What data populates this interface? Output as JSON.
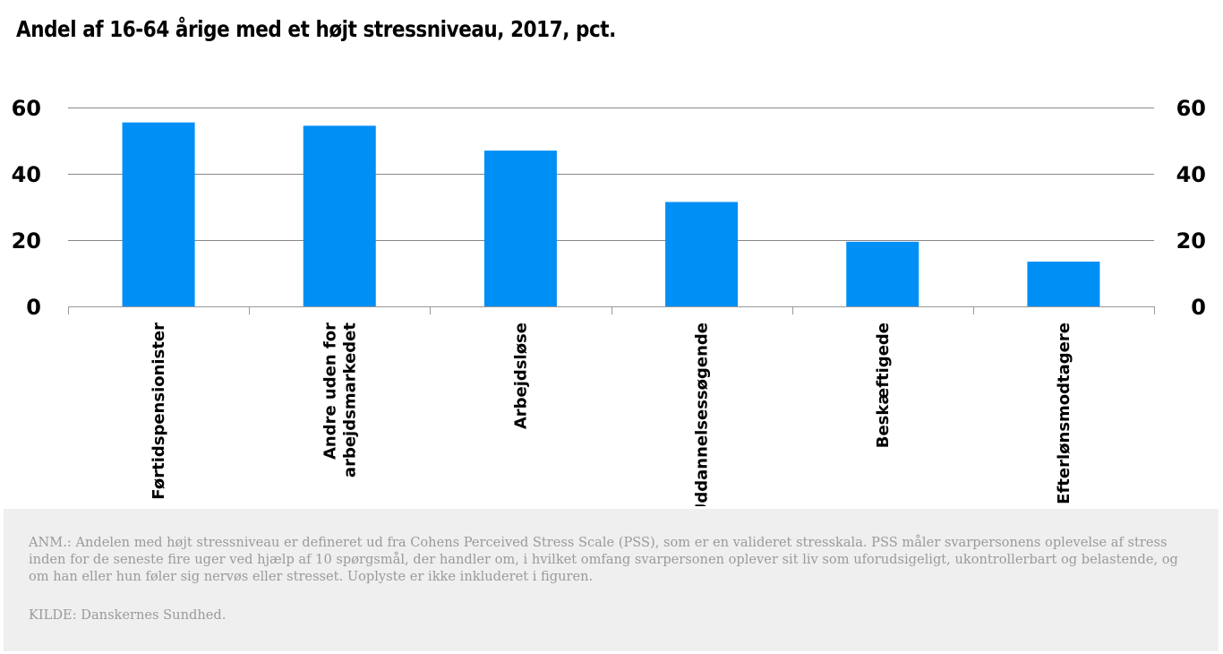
{
  "title": "Andel af 16-64 årige med et højt stressniveau, 2017, pct.",
  "note": "ANM.: Andelen med højt stressniveau er defineret ud fra Cohens Perceived Stress Scale (PSS), som er en valideret stresskala. PSS måler svarpersonens oplevelse af stress inden for de seneste fire uger ved hjælp af 10 spørgsmål, der handler om, i hvilket omfang svarpersonen oplever sit liv som uforudsigeligt, ukontrollerbart og belastende, og om han eller hun føler sig nervøs eller stresset. Uoplyste er ikke inkluderet i figuren.",
  "source": "KILDE: Danskernes Sundhed.",
  "chart_data": {
    "type": "bar",
    "categories": [
      [
        "Førtidspensionister"
      ],
      [
        "Andre uden for",
        "arbejdsmarkedet"
      ],
      [
        "Arbejdsløse"
      ],
      [
        "Uddannelsessøgende"
      ],
      [
        "Beskæftigede"
      ],
      [
        "Efterlønsmodtagere"
      ]
    ],
    "values": [
      55.5,
      54.5,
      47,
      31.5,
      19.5,
      13.5
    ],
    "ylim": [
      0,
      60
    ],
    "yticks": [
      0,
      20,
      40,
      60
    ],
    "grid": true,
    "secondary_axis": true,
    "bar_color": "#008ff5",
    "grid_color": "#888888",
    "axis_color": "#999999"
  }
}
